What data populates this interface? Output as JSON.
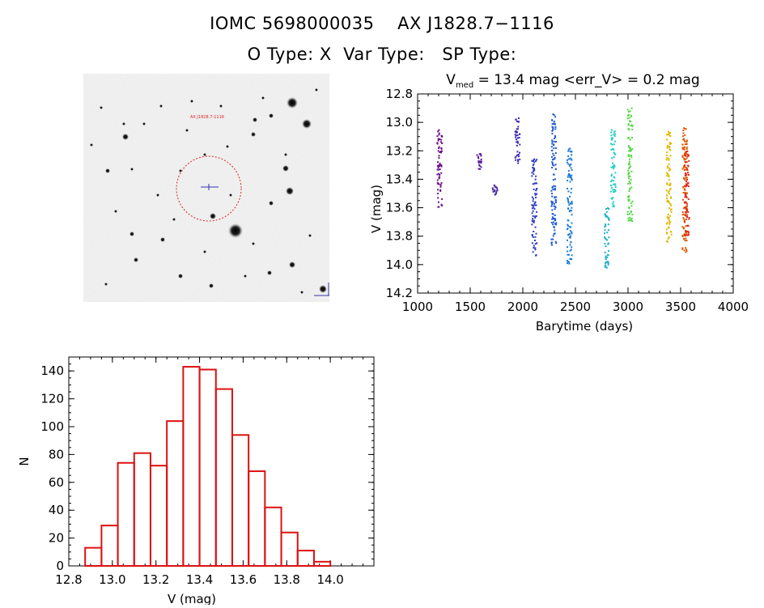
{
  "header": {
    "line1": "IOMC 5698000035    AX J1828.7−1116",
    "line2": "O Type: X  Var Type:   SP Type:"
  },
  "finder_chart": {
    "label_top": "AX J1828.7-1116",
    "label_bottom": "",
    "circle_color": "#dd2222"
  },
  "chart_data": [
    {
      "type": "scatter",
      "title_main": "V",
      "title_sub": "med",
      "title_rest": " = 13.4 mag <err_V> = 0.2 mag",
      "xlabel": "Barytime (days)",
      "ylabel": "V (mag)",
      "xlim": [
        1000,
        4000
      ],
      "ylim": [
        14.2,
        12.8
      ],
      "xticks": [
        "1000",
        "1500",
        "2000",
        "2500",
        "3000",
        "3500",
        "4000"
      ],
      "yticks": [
        "12.8",
        "13.0",
        "13.2",
        "13.4",
        "13.6",
        "13.8",
        "14.0",
        "14.2"
      ],
      "series": [
        {
          "color": "#6a0d8a",
          "x": 1210,
          "ymin": 13.05,
          "ymax": 13.62
        },
        {
          "color": "#5a1a9a",
          "x": 1585,
          "ymin": 13.22,
          "ymax": 13.34
        },
        {
          "color": "#4b2aa8",
          "x": 1735,
          "ymin": 13.44,
          "ymax": 13.51
        },
        {
          "color": "#3a28b8",
          "x": 1950,
          "ymin": 12.95,
          "ymax": 13.3
        },
        {
          "color": "#2a3ac8",
          "x": 2110,
          "ymin": 13.26,
          "ymax": 13.96
        },
        {
          "color": "#1f58d8",
          "x": 2295,
          "ymin": 12.92,
          "ymax": 13.87
        },
        {
          "color": "#1a7ad8",
          "x": 2445,
          "ymin": 13.18,
          "ymax": 14.0
        },
        {
          "color": "#1ab0c8",
          "x": 2800,
          "ymin": 13.6,
          "ymax": 14.03
        },
        {
          "color": "#20d0c0",
          "x": 2860,
          "ymin": 13.05,
          "ymax": 13.6
        },
        {
          "color": "#50d840",
          "x": 3020,
          "ymin": 12.9,
          "ymax": 13.7
        },
        {
          "color": "#e0b800",
          "x": 3390,
          "ymin": 13.05,
          "ymax": 13.84
        },
        {
          "color": "#e05a00",
          "x": 3540,
          "ymin": 13.04,
          "ymax": 13.95
        },
        {
          "color": "#e02818",
          "x": 3560,
          "ymin": 13.2,
          "ymax": 13.8
        }
      ]
    },
    {
      "type": "bar",
      "xlabel": "V (mag)",
      "ylabel": "N",
      "xlim": [
        12.8,
        14.2
      ],
      "ylim": [
        0,
        150
      ],
      "xticks": [
        "12.8",
        "13.0",
        "13.2",
        "13.4",
        "13.6",
        "13.8",
        "14.0"
      ],
      "yticks": [
        "0",
        "20",
        "40",
        "60",
        "80",
        "100",
        "120",
        "140"
      ],
      "bin_width": 0.075,
      "bin_starts": [
        12.875,
        12.95,
        13.025,
        13.1,
        13.175,
        13.25,
        13.325,
        13.4,
        13.475,
        13.55,
        13.625,
        13.7,
        13.775,
        13.85,
        13.925,
        14.0
      ],
      "values": [
        13,
        29,
        74,
        81,
        72,
        104,
        143,
        141,
        127,
        94,
        68,
        42,
        24,
        11,
        3,
        0
      ],
      "color": "#dd1111"
    }
  ]
}
